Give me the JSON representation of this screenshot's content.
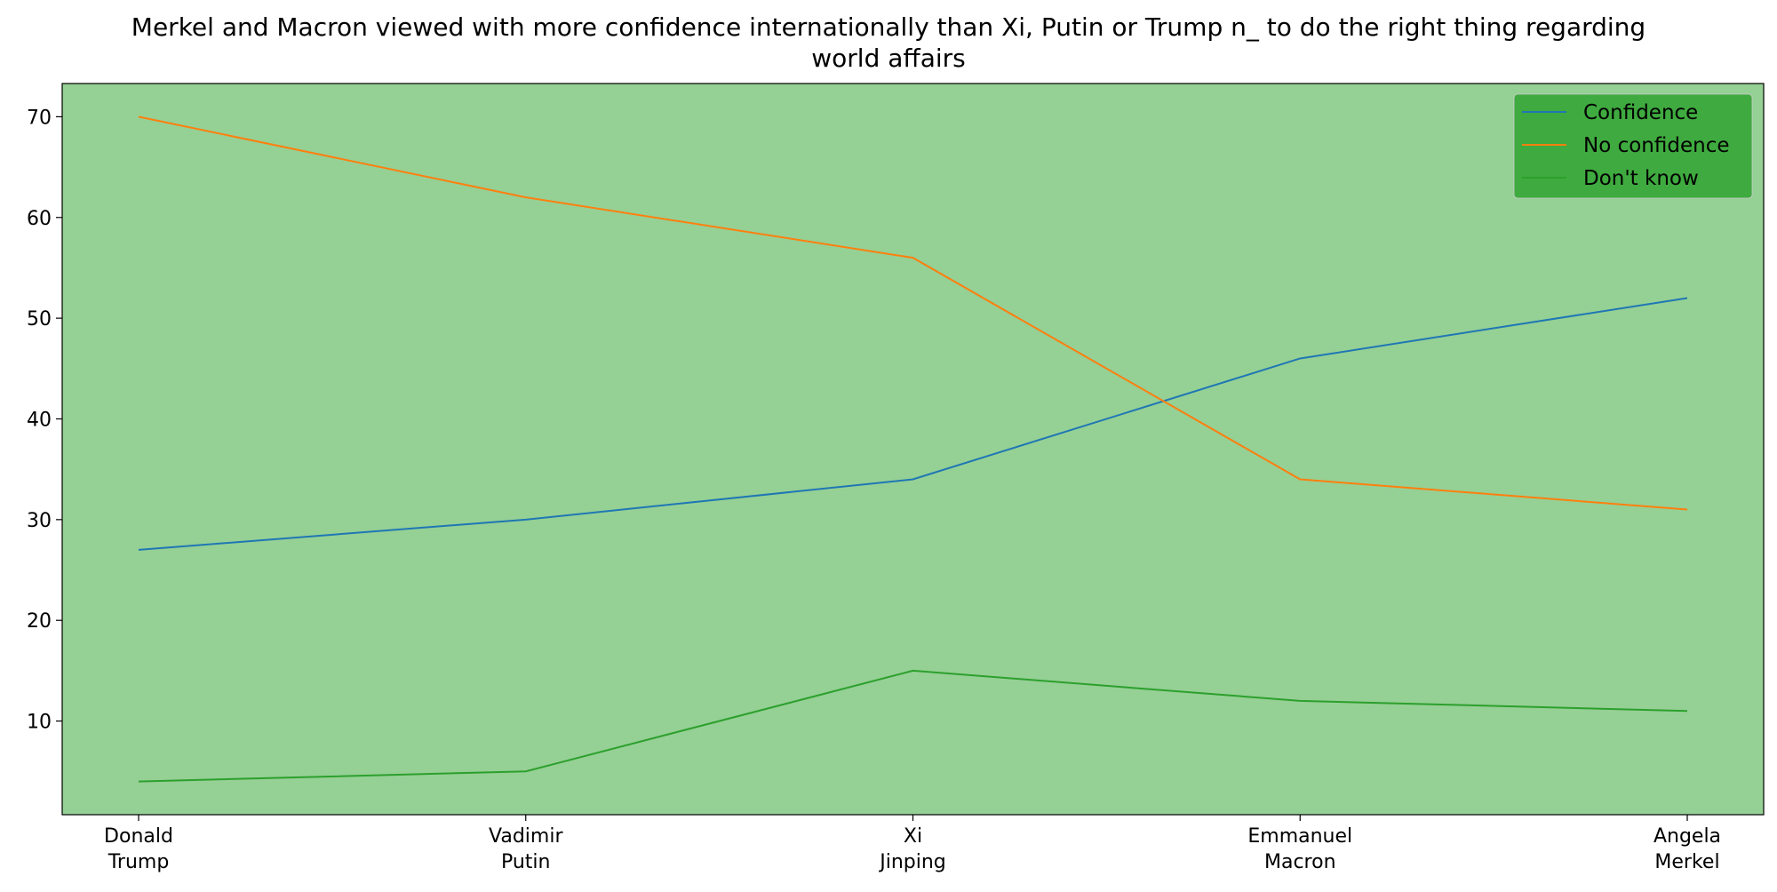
{
  "chart_data": {
    "type": "line",
    "title_lines": [
      "Merkel and Macron viewed with more confidence internationally than Xi, Putin or Trump n_ to do the right thing regarding",
      "world affairs"
    ],
    "xlabel": "",
    "ylabel": "",
    "categories": [
      [
        "Donald",
        "Trump"
      ],
      [
        "Vadimir",
        "Putin"
      ],
      [
        "Xi",
        "Jinping"
      ],
      [
        "Emmanuel",
        "Macron"
      ],
      [
        "Angela",
        "Merkel"
      ]
    ],
    "series": [
      {
        "name": "Confidence",
        "color": "#1f77b4",
        "values": [
          27,
          30,
          34,
          46,
          52
        ]
      },
      {
        "name": "No confidence",
        "color": "#ff7f0e",
        "values": [
          70,
          62,
          56,
          34,
          31
        ]
      },
      {
        "name": "Don't know",
        "color": "#2ca02c",
        "values": [
          4,
          5,
          15,
          12,
          11
        ]
      }
    ],
    "ylim": [
      0.7,
      73.3
    ],
    "yticks": [
      10,
      20,
      30,
      40,
      50,
      60,
      70
    ],
    "grid": false,
    "legend_position": "top-right",
    "colors": {
      "plot_background": "#95d095",
      "legend_background": "#3faa3f",
      "axis": "#000000"
    }
  }
}
